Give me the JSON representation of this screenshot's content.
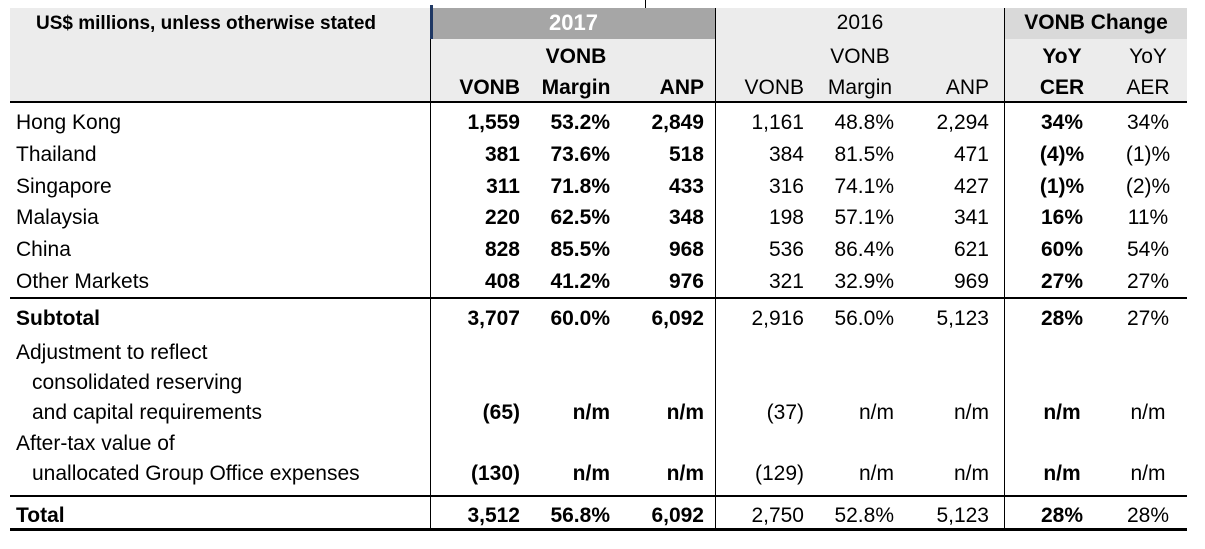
{
  "header": {
    "caption": "US$ millions, unless otherwise stated",
    "group_2017": "2017",
    "group_2016": "2016",
    "group_change": "VONB Change",
    "sub_2017": [
      {
        "line1": "",
        "line2": "VONB"
      },
      {
        "line1": "VONB",
        "line2": "Margin"
      },
      {
        "line1": "",
        "line2": "ANP"
      }
    ],
    "sub_2016": [
      {
        "line1": "",
        "line2": "VONB"
      },
      {
        "line1": "VONB",
        "line2": "Margin"
      },
      {
        "line1": "",
        "line2": "ANP"
      }
    ],
    "sub_change": [
      {
        "line1": "YoY",
        "line2": "CER"
      },
      {
        "line1": "YoY",
        "line2": "AER"
      }
    ]
  },
  "rows": [
    {
      "label": "Hong Kong",
      "v17": "1,559",
      "m17": "53.2%",
      "a17": "2,849",
      "v16": "1,161",
      "m16": "48.8%",
      "a16": "2,294",
      "cer": "34%",
      "aer": "34%"
    },
    {
      "label": "Thailand",
      "v17": "381",
      "m17": "73.6%",
      "a17": "518",
      "v16": "384",
      "m16": "81.5%",
      "a16": "471",
      "cer": "(4)%",
      "aer": "(1)%"
    },
    {
      "label": "Singapore",
      "v17": "311",
      "m17": "71.8%",
      "a17": "433",
      "v16": "316",
      "m16": "74.1%",
      "a16": "427",
      "cer": "(1)%",
      "aer": "(2)%"
    },
    {
      "label": "Malaysia",
      "v17": "220",
      "m17": "62.5%",
      "a17": "348",
      "v16": "198",
      "m16": "57.1%",
      "a16": "341",
      "cer": "16%",
      "aer": "11%"
    },
    {
      "label": "China",
      "v17": "828",
      "m17": "85.5%",
      "a17": "968",
      "v16": "536",
      "m16": "86.4%",
      "a16": "621",
      "cer": "60%",
      "aer": "54%"
    },
    {
      "label": "Other Markets",
      "v17": "408",
      "m17": "41.2%",
      "a17": "976",
      "v16": "321",
      "m16": "32.9%",
      "a16": "969",
      "cer": "27%",
      "aer": "27%"
    }
  ],
  "subtotal": {
    "label": "Subtotal",
    "v17": "3,707",
    "m17": "60.0%",
    "a17": "6,092",
    "v16": "2,916",
    "m16": "56.0%",
    "a16": "5,123",
    "cer": "28%",
    "aer": "27%"
  },
  "adjustment": {
    "label_lines": [
      "Adjustment to reflect",
      "consolidated reserving",
      "and capital requirements"
    ],
    "v17": "(65)",
    "m17": "n/m",
    "a17": "n/m",
    "v16": "(37)",
    "m16": "n/m",
    "a16": "n/m",
    "cer": "n/m",
    "aer": "n/m"
  },
  "aftertax": {
    "label_lines": [
      "After-tax value of",
      "unallocated Group Office expenses"
    ],
    "v17": "(130)",
    "m17": "n/m",
    "a17": "n/m",
    "v16": "(129)",
    "m16": "n/m",
    "a16": "n/m",
    "cer": "n/m",
    "aer": "n/m"
  },
  "total": {
    "label": "Total",
    "v17": "3,512",
    "m17": "56.8%",
    "a17": "6,092",
    "v16": "2,750",
    "m16": "52.8%",
    "a16": "5,123",
    "cer": "28%",
    "aer": "28%"
  },
  "colors": {
    "band_light": "#ececec",
    "band_dark": "#a6a6a6",
    "band_mid": "#d9d9d9",
    "accent": "#1f3864"
  }
}
